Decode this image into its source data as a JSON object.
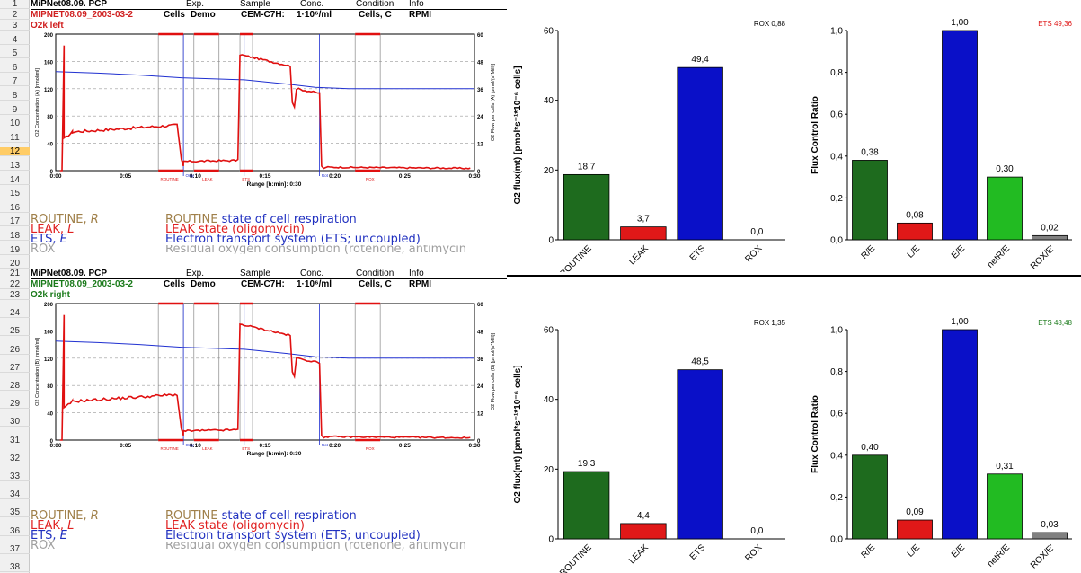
{
  "rows": [
    "1",
    "2",
    "3",
    "4",
    "5",
    "6",
    "7",
    "8",
    "9",
    "10",
    "11",
    "12",
    "13",
    "14",
    "15",
    "16",
    "17",
    "18",
    "19",
    "20",
    "21",
    "22",
    "23",
    "24",
    "25",
    "26",
    "27",
    "28",
    "29",
    "30",
    "31",
    "32",
    "33",
    "34",
    "35",
    "36",
    "37",
    "38"
  ],
  "selected_row": "12",
  "blocks": [
    {
      "title": "MiPNet08.09. PCP",
      "hdr": {
        "exp": "Exp.",
        "sample": "Sample",
        "conc": "Conc.",
        "condition": "Condition",
        "info": "Info"
      },
      "file": "MIPNET08.09_2003-03-2",
      "file_color": "#d02020",
      "cells_lbl": "Cells",
      "exp_val": "Demo",
      "sample_val": "CEM-C7H:",
      "conc_val": "1·10⁶/ml",
      "cond_val": "Cells, C",
      "info_val": "RPMI",
      "chamber": "O2k left",
      "chamber_color": "#d02020",
      "mini": {
        "left_axis": "O2 Concentration (A) [nmol/ml]",
        "right_axis": "O2 Flow per cells (A) [pmol/(s*Mill)]",
        "y_left": [
          "200",
          "160",
          "120",
          "80",
          "40",
          "0"
        ],
        "y_right": [
          "60",
          "48",
          "36",
          "24",
          "12",
          "0"
        ],
        "x_ticks": [
          "0:00",
          "0:05",
          "0:10",
          "0:15",
          "0:20",
          "0:25",
          "0:30"
        ],
        "xlabel": "Range [h:min]: 0:30",
        "marks": [
          "ROUTINE",
          "Omy",
          "LEAK",
          "ETS",
          "Rot",
          "ROX"
        ]
      },
      "legend": [
        {
          "abbr": "ROUTINE, ",
          "sym": "R",
          "desc": "ROUTINE state of cell respiration",
          "desc_lead": "ROUTINE "
        },
        {
          "abbr": "LEAK, ",
          "sym": "L",
          "desc": "LEAK state (oligomycin)"
        },
        {
          "abbr": "ETS, ",
          "sym": "E",
          "desc": "Electron transport system (ETS; uncoupled)"
        },
        {
          "abbr": "ROX",
          "sym": "",
          "desc": "Residual oxygen consumption (rotenone, antimycin"
        }
      ]
    },
    {
      "title": "MiPNet08.09. PCP",
      "hdr": {
        "exp": "Exp.",
        "sample": "Sample",
        "conc": "Conc.",
        "condition": "Condition",
        "info": "Info"
      },
      "file": "MIPNET08.09_2003-03-2",
      "file_color": "#1a7a1a",
      "cells_lbl": "Cells",
      "exp_val": "Demo",
      "sample_val": "CEM-C7H:",
      "conc_val": "1·10⁶/ml",
      "cond_val": "Cells, C",
      "info_val": "RPMI",
      "chamber": "O2k right",
      "chamber_color": "#1a7a1a",
      "mini": {
        "left_axis": "O2 Concentration (B) [nmol/ml]",
        "right_axis": "O2 Flow per cells (B) [pmol/(s*Mill)]",
        "y_left": [
          "200",
          "160",
          "120",
          "80",
          "40",
          "0"
        ],
        "y_right": [
          "60",
          "48",
          "36",
          "24",
          "12",
          "0"
        ],
        "x_ticks": [
          "0:00",
          "0:05",
          "0:10",
          "0:15",
          "0:20",
          "0:25",
          "0:30"
        ],
        "xlabel": "Range [h:min]: 0:30",
        "marks": [
          "ROUTINE",
          "Omy",
          "LEAK",
          "ETS",
          "Rot",
          "ROX"
        ]
      },
      "legend": [
        {
          "abbr": "ROUTINE, ",
          "sym": "R",
          "desc": "ROUTINE state of cell respiration",
          "desc_lead": "ROUTINE "
        },
        {
          "abbr": "LEAK, ",
          "sym": "L",
          "desc": "LEAK state (oligomycin)"
        },
        {
          "abbr": "ETS, ",
          "sym": "E",
          "desc": "Electron transport system (ETS; uncoupled)"
        },
        {
          "abbr": "ROX",
          "sym": "",
          "desc": "Residual oxygen consumption (rotenone, antimycin"
        }
      ]
    }
  ],
  "colors": {
    "routine": "#1e6b1e",
    "leak": "#e01818",
    "ets": "#0a10c8",
    "rox": "#ffffff",
    "netR": "#22bb22",
    "roxE": "#808080",
    "trace_red": "#e01010",
    "trace_blue": "#2030d0"
  },
  "chart_data": [
    {
      "type": "bar",
      "categories": [
        "ROUTINE",
        "LEAK",
        "ETS",
        "ROX"
      ],
      "values": [
        18.7,
        3.7,
        49.4,
        0.0
      ],
      "labels": [
        "18,7",
        "3,7",
        "49,4",
        "0,0"
      ],
      "ylabel": "O2 flux(mt) [pmol*s⁻¹*10⁻⁶ cells]",
      "ylim": [
        0,
        60
      ],
      "yticks": [
        "0",
        "20",
        "40",
        "60"
      ],
      "corner": "ROX 0,88",
      "corner_color": "#000000"
    },
    {
      "type": "bar",
      "categories": [
        "R/E",
        "L/E",
        "E/E",
        "netR/E",
        "ROX/E'"
      ],
      "values": [
        0.38,
        0.08,
        1.0,
        0.3,
        0.02
      ],
      "labels": [
        "0,38",
        "0,08",
        "1,00",
        "0,30",
        "0,02"
      ],
      "ylabel": "Flux Control Ratio",
      "ylim": [
        0,
        1
      ],
      "yticks": [
        "0,0",
        "0,2",
        "0,4",
        "0,6",
        "0,8",
        "1,0"
      ],
      "corner": "ETS 49,36",
      "corner_color": "#e01818"
    },
    {
      "type": "bar",
      "categories": [
        "ROUTINE",
        "LEAK",
        "ETS",
        "ROX"
      ],
      "values": [
        19.3,
        4.4,
        48.5,
        0.0
      ],
      "labels": [
        "19,3",
        "4,4",
        "48,5",
        "0,0"
      ],
      "ylabel": "O2 flux(mt) [pmol*s⁻¹*10⁻⁶ cells]",
      "ylim": [
        0,
        60
      ],
      "yticks": [
        "0",
        "20",
        "40",
        "60"
      ],
      "corner": "ROX 1,35",
      "corner_color": "#000000"
    },
    {
      "type": "bar",
      "categories": [
        "R/E",
        "L/E",
        "E/E",
        "netR/E",
        "ROX/E'"
      ],
      "values": [
        0.4,
        0.09,
        1.0,
        0.31,
        0.03
      ],
      "labels": [
        "0,40",
        "0,09",
        "1,00",
        "0,31",
        "0,03"
      ],
      "ylabel": "Flux Control Ratio",
      "ylim": [
        0,
        1
      ],
      "yticks": [
        "0,0",
        "0,2",
        "0,4",
        "0,6",
        "0,8",
        "1,0"
      ],
      "corner": "ETS 48,48",
      "corner_color": "#1a7a1a"
    }
  ]
}
